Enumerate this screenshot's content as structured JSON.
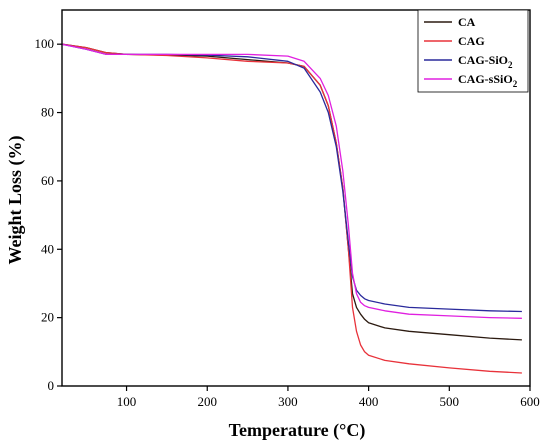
{
  "chart_data": {
    "type": "line",
    "xlabel": "Temperature (°C)",
    "ylabel": "Weight Loss (%)",
    "xlim": [
      20,
      600
    ],
    "ylim": [
      0,
      110
    ],
    "xticks": [
      100,
      200,
      300,
      400,
      500,
      600
    ],
    "yticks": [
      0,
      20,
      40,
      60,
      80,
      100
    ],
    "grid": false,
    "legend_position": "top-right",
    "series": [
      {
        "name": "CA",
        "legend_parts": [
          "CA"
        ],
        "color": "#2b1a10",
        "points": [
          [
            20,
            100
          ],
          [
            50,
            99
          ],
          [
            75,
            97.5
          ],
          [
            100,
            97
          ],
          [
            150,
            96.8
          ],
          [
            200,
            96.5
          ],
          [
            250,
            95.5
          ],
          [
            300,
            94.5
          ],
          [
            320,
            93.5
          ],
          [
            340,
            88
          ],
          [
            350,
            82
          ],
          [
            360,
            71
          ],
          [
            368,
            58
          ],
          [
            375,
            40
          ],
          [
            380,
            27
          ],
          [
            385,
            23
          ],
          [
            390,
            21
          ],
          [
            395,
            19.5
          ],
          [
            400,
            18.5
          ],
          [
            420,
            17
          ],
          [
            450,
            16
          ],
          [
            500,
            15
          ],
          [
            550,
            14
          ],
          [
            590,
            13.5
          ]
        ]
      },
      {
        "name": "CAG",
        "legend_parts": [
          "CAG"
        ],
        "color": "#e8323a",
        "points": [
          [
            20,
            100
          ],
          [
            50,
            99
          ],
          [
            75,
            97.5
          ],
          [
            100,
            97
          ],
          [
            150,
            96.7
          ],
          [
            200,
            96
          ],
          [
            250,
            95
          ],
          [
            300,
            94.5
          ],
          [
            320,
            93.5
          ],
          [
            340,
            88
          ],
          [
            350,
            82
          ],
          [
            360,
            71
          ],
          [
            368,
            58
          ],
          [
            375,
            40
          ],
          [
            380,
            23
          ],
          [
            385,
            16
          ],
          [
            390,
            12
          ],
          [
            395,
            10
          ],
          [
            400,
            9
          ],
          [
            420,
            7.5
          ],
          [
            450,
            6.5
          ],
          [
            500,
            5.3
          ],
          [
            550,
            4.3
          ],
          [
            590,
            3.8
          ]
        ]
      },
      {
        "name": "CAG-SiO2",
        "legend_parts": [
          "CAG-SiO",
          "2",
          ""
        ],
        "color": "#2a2a9c",
        "points": [
          [
            20,
            100
          ],
          [
            50,
            98.5
          ],
          [
            75,
            97
          ],
          [
            100,
            97
          ],
          [
            150,
            97
          ],
          [
            200,
            96.8
          ],
          [
            250,
            96.3
          ],
          [
            300,
            95
          ],
          [
            320,
            93
          ],
          [
            340,
            86
          ],
          [
            350,
            80
          ],
          [
            360,
            70
          ],
          [
            368,
            57
          ],
          [
            375,
            42
          ],
          [
            380,
            32
          ],
          [
            385,
            28
          ],
          [
            390,
            26.5
          ],
          [
            395,
            25.5
          ],
          [
            400,
            25
          ],
          [
            420,
            24
          ],
          [
            450,
            23
          ],
          [
            500,
            22.5
          ],
          [
            550,
            22
          ],
          [
            590,
            21.8
          ]
        ]
      },
      {
        "name": "CAG-sSiO2",
        "legend_parts": [
          "CAG-sSiO",
          "2",
          ""
        ],
        "color": "#e020e0",
        "points": [
          [
            20,
            100
          ],
          [
            50,
            98.5
          ],
          [
            75,
            97
          ],
          [
            100,
            97
          ],
          [
            150,
            97
          ],
          [
            200,
            97
          ],
          [
            250,
            97
          ],
          [
            300,
            96.5
          ],
          [
            320,
            95
          ],
          [
            340,
            90
          ],
          [
            350,
            85
          ],
          [
            360,
            76
          ],
          [
            368,
            63
          ],
          [
            375,
            47
          ],
          [
            380,
            33
          ],
          [
            385,
            27
          ],
          [
            390,
            24.5
          ],
          [
            395,
            23.5
          ],
          [
            400,
            23
          ],
          [
            420,
            22
          ],
          [
            450,
            21
          ],
          [
            500,
            20.5
          ],
          [
            550,
            20
          ],
          [
            590,
            19.8
          ]
        ]
      }
    ]
  }
}
